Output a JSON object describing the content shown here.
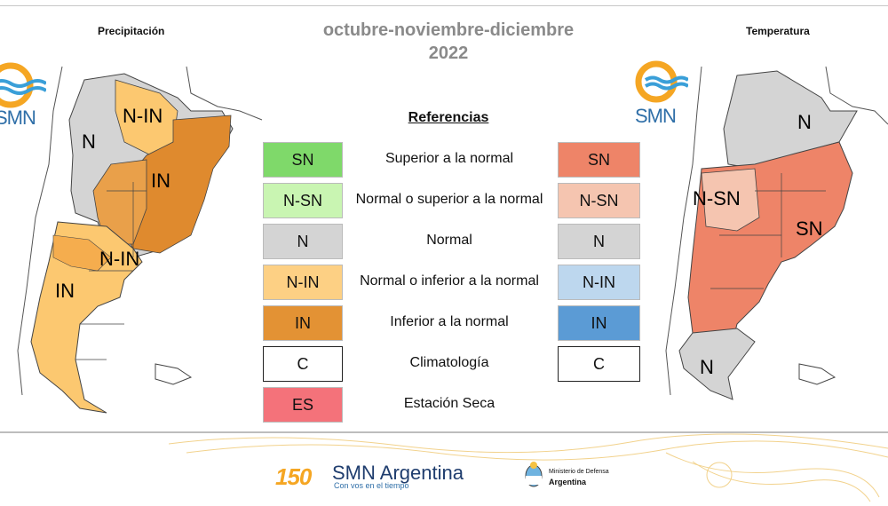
{
  "title": {
    "line1": "octubre-noviembre-diciembre",
    "line2": "2022"
  },
  "panels": {
    "precip_title": "Precipitación",
    "temp_title": "Temperatura"
  },
  "references": {
    "title": "Referencias",
    "rows": [
      {
        "code": "SN",
        "label": "Superior a la normal",
        "precip_color": "#7fd96a",
        "temp_color": "#ee8468"
      },
      {
        "code": "N-SN",
        "label": "Normal o superior a la normal",
        "precip_color": "#c9f5b2",
        "temp_color": "#f5c5b0"
      },
      {
        "code": "N",
        "label": "Normal",
        "precip_color": "#d4d4d4",
        "temp_color": "#d4d4d4"
      },
      {
        "code": "N-IN",
        "label": "Normal o inferior a la normal",
        "precip_color": "#fdd084",
        "temp_color": "#bdd7ee"
      },
      {
        "code": "IN",
        "label": "Inferior a la normal",
        "precip_color": "#e39234",
        "temp_color": "#5b9bd5"
      },
      {
        "code": "C",
        "label": "Climatología",
        "precip_color": "#ffffff",
        "temp_color": "#ffffff"
      },
      {
        "code": "ES",
        "label": "Estación Seca",
        "precip_color": "#f4727a"
      }
    ]
  },
  "precip_map": {
    "labels": [
      "N-IN",
      "N",
      "IN",
      "N-IN",
      "IN"
    ],
    "colors": {
      "n": "#d4d4d4",
      "n_in": "#fcc870",
      "in": "#df8a2e"
    }
  },
  "temp_map": {
    "labels": [
      "N",
      "N-SN",
      "SN",
      "N"
    ],
    "colors": {
      "n": "#d4d4d4",
      "n_sn": "#f5c5b0",
      "sn": "#ee8468"
    }
  },
  "logo": {
    "text": "SMN"
  },
  "footer": {
    "brand": "SMN Argentina",
    "tagline": "Con vos en el tiempo",
    "badge": "150",
    "ministry_line1": "Ministerio de Defensa",
    "ministry_line2": "Argentina"
  }
}
